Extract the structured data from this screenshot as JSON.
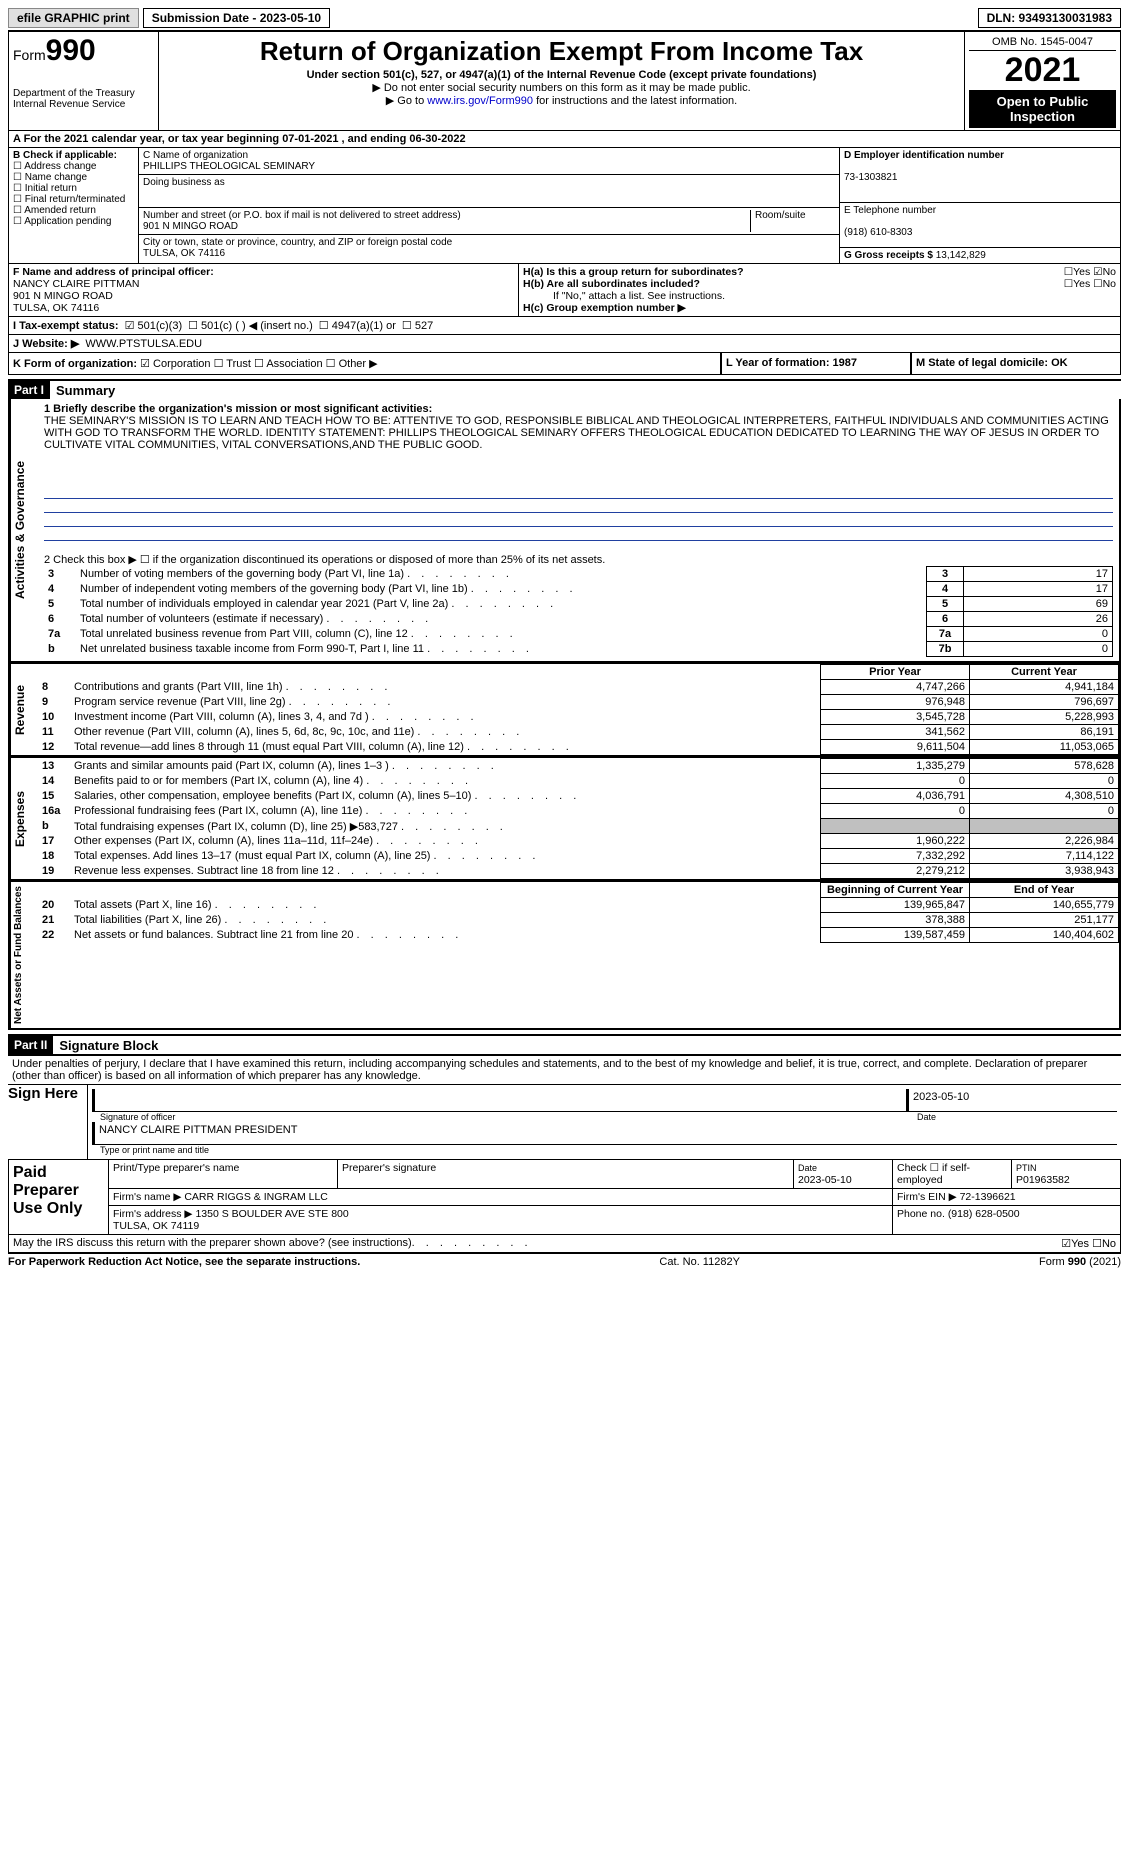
{
  "topbar": {
    "efile": "efile GRAPHIC print",
    "submission": "Submission Date - 2023-05-10",
    "dln": "DLN: 93493130031983"
  },
  "header": {
    "form_prefix": "Form",
    "form_num": "990",
    "dept": "Department of the Treasury\nInternal Revenue Service",
    "title": "Return of Organization Exempt From Income Tax",
    "subtitle": "Under section 501(c), 527, or 4947(a)(1) of the Internal Revenue Code (except private foundations)",
    "note1": "▶ Do not enter social security numbers on this form as it may be made public.",
    "note2_pre": "▶ Go to ",
    "note2_link": "www.irs.gov/Form990",
    "note2_post": " for instructions and the latest information.",
    "omb": "OMB No. 1545-0047",
    "year": "2021",
    "open": "Open to Public Inspection"
  },
  "rowA": "A For the 2021 calendar year, or tax year beginning 07-01-2021   , and ending 06-30-2022",
  "boxB": {
    "title": "B Check if applicable:",
    "items": [
      "Address change",
      "Name change",
      "Initial return",
      "Final return/terminated",
      "Amended return",
      "Application pending"
    ]
  },
  "boxC": {
    "label_name": "C Name of organization",
    "name": "PHILLIPS THEOLOGICAL SEMINARY",
    "dba_label": "Doing business as",
    "dba": "",
    "street_label": "Number and street (or P.O. box if mail is not delivered to street address)",
    "street": "901 N MINGO ROAD",
    "room_label": "Room/suite",
    "city_label": "City or town, state or province, country, and ZIP or foreign postal code",
    "city": "TULSA, OK  74116"
  },
  "boxD": {
    "label": "D Employer identification number",
    "val": "73-1303821",
    "tel_label": "E Telephone number",
    "tel": "(918) 610-8303",
    "gross_label": "G Gross receipts $",
    "gross": "13,142,829"
  },
  "boxF": {
    "label": "F  Name and address of principal officer:",
    "name": "NANCY CLAIRE PITTMAN",
    "addr1": "901 N MINGO ROAD",
    "addr2": "TULSA, OK  74116"
  },
  "boxH": {
    "ha": "H(a)  Is this a group return for subordinates?",
    "hb": "H(b)  Are all subordinates included?",
    "hb_note": "If \"No,\" attach a list. See instructions.",
    "hc": "H(c)  Group exemption number ▶"
  },
  "rowI": {
    "label": "I   Tax-exempt status:",
    "c1": "501(c)(3)",
    "c2": "501(c) (  ) ◀ (insert no.)",
    "c3": "4947(a)(1) or",
    "c4": "527"
  },
  "rowJ": {
    "label": "J  Website: ▶",
    "val": "WWW.PTSTULSA.EDU"
  },
  "rowK": {
    "label": "K Form of organization:",
    "o1": "Corporation",
    "o2": "Trust",
    "o3": "Association",
    "o4": "Other ▶"
  },
  "rowL": {
    "l": "L Year of formation: 1987",
    "m": "M State of legal domicile: OK"
  },
  "part1": {
    "hdr": "Part I",
    "title": "Summary",
    "vert1": "Activities & Governance",
    "q1_label": "1  Briefly describe the organization's mission or most significant activities:",
    "mission": "THE SEMINARY'S MISSION IS TO LEARN AND TEACH HOW TO BE: ATTENTIVE TO GOD, RESPONSIBLE BIBLICAL AND THEOLOGICAL INTERPRETERS, FAITHFUL INDIVIDUALS AND COMMUNITIES ACTING WITH GOD TO TRANSFORM THE WORLD. IDENTITY STATEMENT: PHILLIPS THEOLOGICAL SEMINARY OFFERS THEOLOGICAL EDUCATION DEDICATED TO LEARNING THE WAY OF JESUS IN ORDER TO CULTIVATE VITAL COMMUNITIES, VITAL CONVERSATIONS,AND THE PUBLIC GOOD.",
    "q2": "2   Check this box ▶ ☐  if the organization discontinued its operations or disposed of more than 25% of its net assets.",
    "rows_gov": [
      {
        "n": "3",
        "t": "Number of voting members of the governing body (Part VI, line 1a)",
        "box": "3",
        "v": "17"
      },
      {
        "n": "4",
        "t": "Number of independent voting members of the governing body (Part VI, line 1b)",
        "box": "4",
        "v": "17"
      },
      {
        "n": "5",
        "t": "Total number of individuals employed in calendar year 2021 (Part V, line 2a)",
        "box": "5",
        "v": "69"
      },
      {
        "n": "6",
        "t": "Total number of volunteers (estimate if necessary)",
        "box": "6",
        "v": "26"
      },
      {
        "n": "7a",
        "t": "Total unrelated business revenue from Part VIII, column (C), line 12",
        "box": "7a",
        "v": "0"
      },
      {
        "n": "b",
        "t": "Net unrelated business taxable income from Form 990-T, Part I, line 11",
        "box": "7b",
        "v": "0"
      }
    ],
    "vert2": "Revenue",
    "col_prior": "Prior Year",
    "col_current": "Current Year",
    "rows_rev": [
      {
        "n": "8",
        "t": "Contributions and grants (Part VIII, line 1h)",
        "p": "4,747,266",
        "c": "4,941,184"
      },
      {
        "n": "9",
        "t": "Program service revenue (Part VIII, line 2g)",
        "p": "976,948",
        "c": "796,697"
      },
      {
        "n": "10",
        "t": "Investment income (Part VIII, column (A), lines 3, 4, and 7d )",
        "p": "3,545,728",
        "c": "5,228,993"
      },
      {
        "n": "11",
        "t": "Other revenue (Part VIII, column (A), lines 5, 6d, 8c, 9c, 10c, and 11e)",
        "p": "341,562",
        "c": "86,191"
      },
      {
        "n": "12",
        "t": "Total revenue—add lines 8 through 11 (must equal Part VIII, column (A), line 12)",
        "p": "9,611,504",
        "c": "11,053,065"
      }
    ],
    "vert3": "Expenses",
    "rows_exp": [
      {
        "n": "13",
        "t": "Grants and similar amounts paid (Part IX, column (A), lines 1–3 )",
        "p": "1,335,279",
        "c": "578,628"
      },
      {
        "n": "14",
        "t": "Benefits paid to or for members (Part IX, column (A), line 4)",
        "p": "0",
        "c": "0"
      },
      {
        "n": "15",
        "t": "Salaries, other compensation, employee benefits (Part IX, column (A), lines 5–10)",
        "p": "4,036,791",
        "c": "4,308,510"
      },
      {
        "n": "16a",
        "t": "Professional fundraising fees (Part IX, column (A), line 11e)",
        "p": "0",
        "c": "0"
      },
      {
        "n": "b",
        "t": "Total fundraising expenses (Part IX, column (D), line 25) ▶583,727",
        "p": "",
        "c": "",
        "grey": true
      },
      {
        "n": "17",
        "t": "Other expenses (Part IX, column (A), lines 11a–11d, 11f–24e)",
        "p": "1,960,222",
        "c": "2,226,984"
      },
      {
        "n": "18",
        "t": "Total expenses. Add lines 13–17 (must equal Part IX, column (A), line 25)",
        "p": "7,332,292",
        "c": "7,114,122"
      },
      {
        "n": "19",
        "t": "Revenue less expenses. Subtract line 18 from line 12",
        "p": "2,279,212",
        "c": "3,938,943"
      }
    ],
    "vert4": "Net Assets or Fund Balances",
    "col_begin": "Beginning of Current Year",
    "col_end": "End of Year",
    "rows_net": [
      {
        "n": "20",
        "t": "Total assets (Part X, line 16)",
        "p": "139,965,847",
        "c": "140,655,779"
      },
      {
        "n": "21",
        "t": "Total liabilities (Part X, line 26)",
        "p": "378,388",
        "c": "251,177"
      },
      {
        "n": "22",
        "t": "Net assets or fund balances. Subtract line 21 from line 20",
        "p": "139,587,459",
        "c": "140,404,602"
      }
    ]
  },
  "part2": {
    "hdr": "Part II",
    "title": "Signature Block",
    "decl": "Under penalties of perjury, I declare that I have examined this return, including accompanying schedules and statements, and to the best of my knowledge and belief, it is true, correct, and complete. Declaration of preparer (other than officer) is based on all information of which preparer has any knowledge.",
    "sign_here": "Sign Here",
    "sig_officer": "Signature of officer",
    "sig_date": "2023-05-10",
    "date_lbl": "Date",
    "officer_name": "NANCY CLAIRE PITTMAN  PRESIDENT",
    "officer_lbl": "Type or print name and title",
    "paid": "Paid Preparer Use Only",
    "prep_name_lbl": "Print/Type preparer's name",
    "prep_sig_lbl": "Preparer's signature",
    "prep_date_lbl": "Date",
    "prep_date": "2023-05-10",
    "prep_check": "Check ☐ if self-employed",
    "ptin_lbl": "PTIN",
    "ptin": "P01963582",
    "firm_name_lbl": "Firm's name    ▶",
    "firm_name": "CARR RIGGS & INGRAM LLC",
    "firm_ein_lbl": "Firm's EIN ▶",
    "firm_ein": "72-1396621",
    "firm_addr_lbl": "Firm's address ▶",
    "firm_addr": "1350 S BOULDER AVE STE 800\nTULSA, OK  74119",
    "firm_phone_lbl": "Phone no.",
    "firm_phone": "(918) 628-0500",
    "may_irs": "May the IRS discuss this return with the preparer shown above? (see instructions)",
    "yes": "Yes",
    "no": "No"
  },
  "footer": {
    "left": "For Paperwork Reduction Act Notice, see the separate instructions.",
    "mid": "Cat. No. 11282Y",
    "right": "Form 990 (2021)"
  }
}
